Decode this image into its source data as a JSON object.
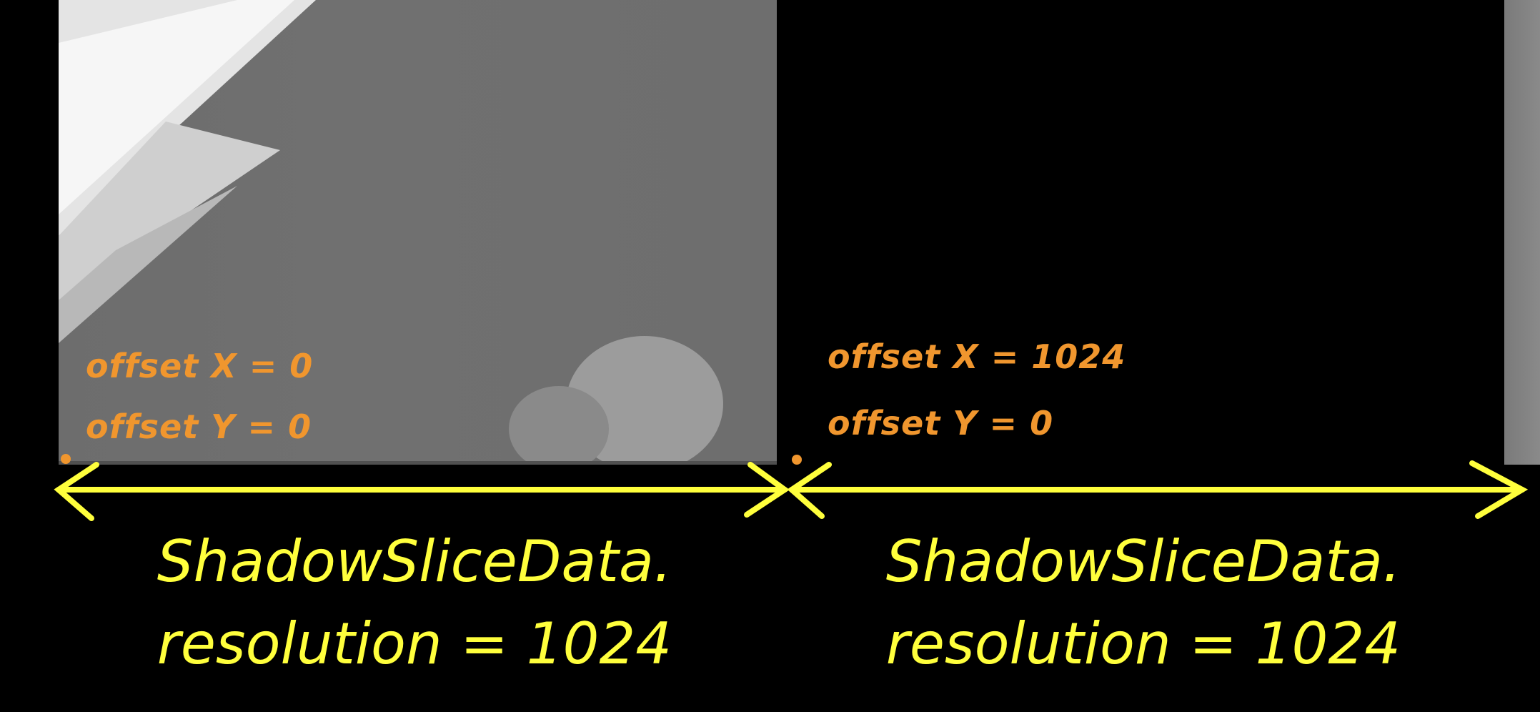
{
  "colors": {
    "background": "#000000",
    "offset_text": "#f0962e",
    "annotation": "#ffff3c",
    "shadow_gray": "#6e6e6e",
    "shadow_light": "#d8d8d8"
  },
  "slices": [
    {
      "offset_x_label": "offset X = 0",
      "offset_y_label": "offset Y = 0",
      "data_label": "ShadowSliceData.",
      "resolution_label": "resolution = 1024"
    },
    {
      "offset_x_label": "offset X = 1024",
      "offset_y_label": "offset Y = 0",
      "data_label": "ShadowSliceData.",
      "resolution_label": "resolution = 1024"
    }
  ]
}
